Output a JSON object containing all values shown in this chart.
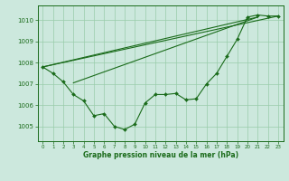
{
  "background_color": "#cce8dd",
  "grid_color": "#99ccaa",
  "line_color": "#1a6b1a",
  "marker_color": "#1a6b1a",
  "xlabel": "Graphe pression niveau de la mer (hPa)",
  "ylim": [
    1004.3,
    1010.7
  ],
  "yticks": [
    1005,
    1006,
    1007,
    1008,
    1009,
    1010
  ],
  "xticks": [
    0,
    1,
    2,
    3,
    4,
    5,
    6,
    7,
    8,
    9,
    10,
    11,
    12,
    13,
    14,
    15,
    16,
    17,
    18,
    19,
    20,
    21,
    22,
    23
  ],
  "series1": [
    1007.8,
    1007.5,
    1007.1,
    1006.5,
    1006.2,
    1005.5,
    1005.6,
    1005.0,
    1004.85,
    1005.1,
    1006.1,
    1006.5,
    1006.5,
    1006.55,
    1006.25,
    1006.3,
    1007.0,
    1007.5,
    1008.3,
    1009.1,
    1010.15,
    1010.25,
    1010.2,
    1010.2
  ],
  "trend1_x": [
    0,
    23
  ],
  "trend1_y": [
    1007.8,
    1010.2
  ],
  "trend2_x": [
    0,
    21
  ],
  "trend2_y": [
    1007.8,
    1010.15
  ],
  "trend3_x": [
    3,
    21
  ],
  "trend3_y": [
    1007.05,
    1010.15
  ]
}
